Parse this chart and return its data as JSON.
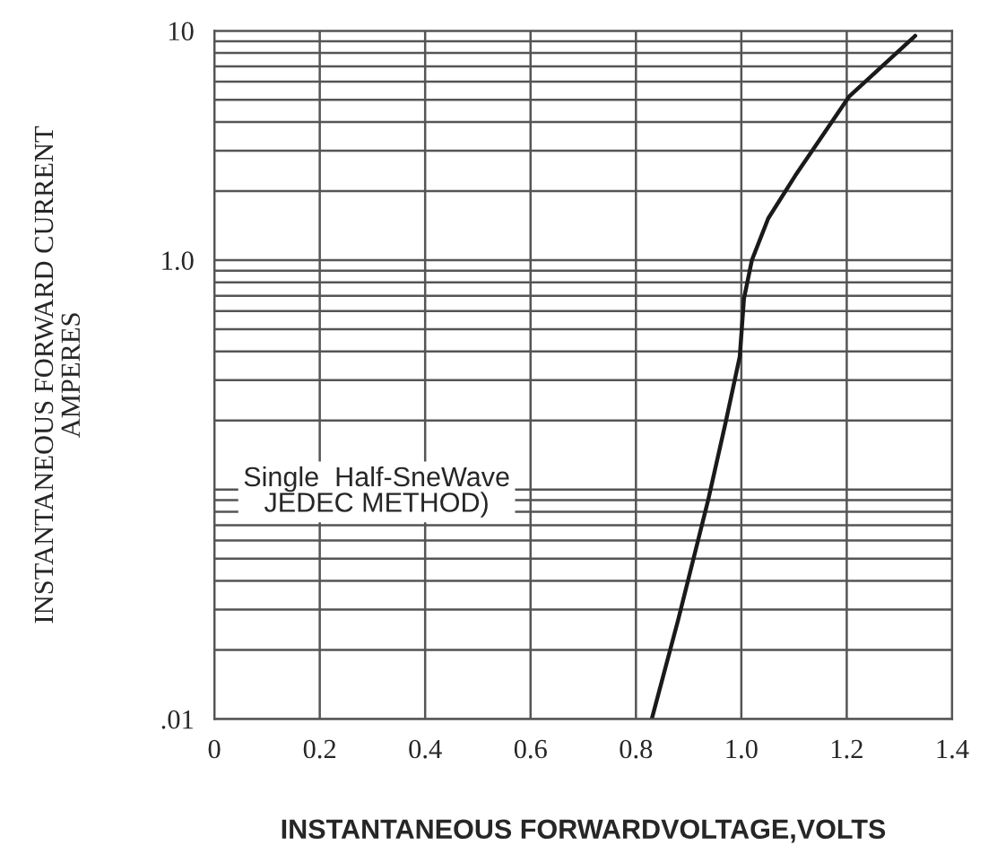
{
  "chart_data": {
    "type": "line",
    "xlabel": "INSTANTANEOUS FORWARDVOLTAGE,VOLTS",
    "ylabel": "INSTANTANEOUS FORWARD CURRENT\nAMPERES",
    "annotations": [
      "Single  Half-SneWave\nJEDEC METHOD)"
    ],
    "x": [
      0.83,
      0.88,
      0.937,
      0.971,
      0.997,
      1.005,
      1.02,
      1.051,
      1.102,
      1.204,
      1.33
    ],
    "series": [
      {
        "color": "#1a1a1a",
        "values": [
          0.01,
          0.027,
          0.09,
          0.2,
          0.38,
          0.68,
          1.0,
          1.52,
          2.33,
          5.15,
          9.5
        ]
      }
    ],
    "log": "y",
    "xlim": [
      0,
      1.4
    ],
    "xticks": [
      0,
      {
        "value": 0.2,
        "label": "0.2"
      },
      {
        "value": 0.4,
        "label": "0.4"
      },
      {
        "value": 0.6,
        "label": "0.6"
      },
      {
        "value": 0.8,
        "label": "0.8"
      },
      {
        "value": 1.0,
        "label": "1.0"
      },
      {
        "value": 1.2,
        "label": "1.2"
      },
      {
        "value": 1.4,
        "label": "1.4"
      }
    ],
    "ylim": [
      0.01,
      10
    ],
    "yticks": [
      {
        "value": 0.01,
        "label": ".01"
      },
      {
        "value": 0.02,
        "label": null
      },
      {
        "value": 0.03,
        "label": null
      },
      {
        "value": 0.04,
        "label": null
      },
      {
        "value": 0.05,
        "label": null
      },
      {
        "value": 0.06,
        "label": null
      },
      {
        "value": 0.07,
        "label": null
      },
      {
        "value": 0.08,
        "label": null
      },
      {
        "value": 0.09,
        "label": null
      },
      {
        "value": 0.1,
        "label": null
      },
      {
        "value": 0.2,
        "label": null
      },
      {
        "value": 0.3,
        "label": null
      },
      {
        "value": 0.4,
        "label": null
      },
      {
        "value": 0.5,
        "label": null
      },
      {
        "value": 0.6,
        "label": null
      },
      {
        "value": 0.7,
        "label": null
      },
      {
        "value": 0.8,
        "label": null
      },
      {
        "value": 0.9,
        "label": null
      },
      {
        "value": 1,
        "label": "1.0"
      },
      {
        "value": 2,
        "label": null
      },
      {
        "value": 3,
        "label": null
      },
      {
        "value": 4,
        "label": null
      },
      {
        "value": 5,
        "label": null
      },
      {
        "value": 6,
        "label": null
      },
      {
        "value": 7,
        "label": null
      },
      {
        "value": 8,
        "label": null
      },
      {
        "value": 9,
        "label": null
      },
      {
        "value": 10,
        "label": "10"
      }
    ],
    "grid": true,
    "marker": "none",
    "line_style": "solid",
    "legend": false
  }
}
